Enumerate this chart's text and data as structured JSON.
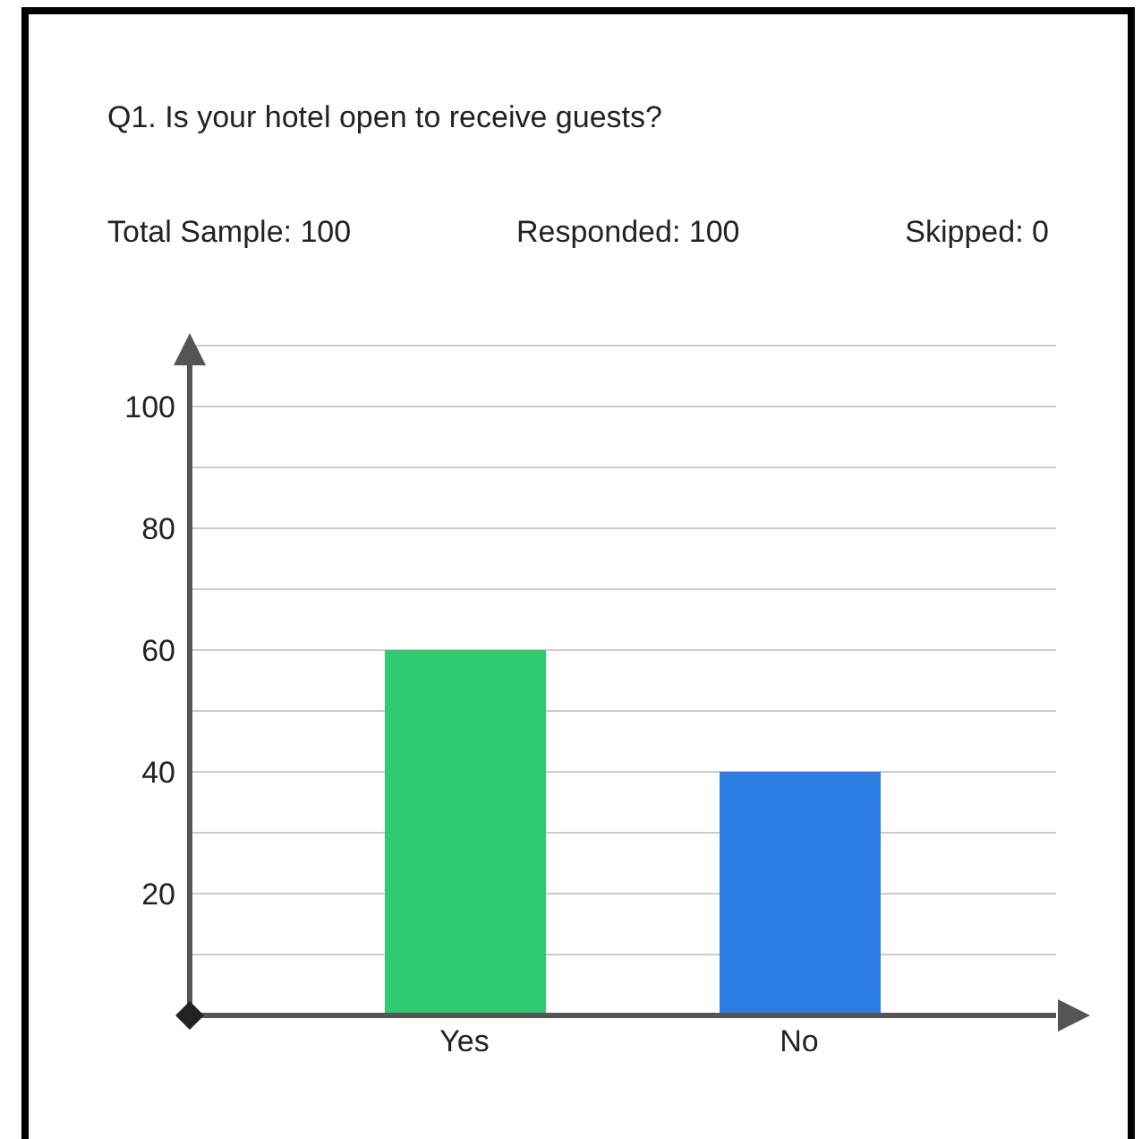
{
  "chart_data": {
    "type": "bar",
    "title": "Q1. Is your hotel open to receive guests?",
    "annotations": [
      "Total Sample: 100",
      "Responded: 100",
      "Skipped: 0"
    ],
    "categories": [
      "Yes",
      "No"
    ],
    "values": [
      60,
      40
    ],
    "colors": [
      "#2ecc71",
      "#2a7de0"
    ],
    "ylim": [
      0,
      110
    ],
    "yticks": [
      {
        "value": 10,
        "label": null
      },
      20,
      {
        "value": 30,
        "label": null
      },
      40,
      {
        "value": 50,
        "label": null
      },
      60,
      {
        "value": 70,
        "label": null
      },
      80,
      {
        "value": 90,
        "label": null
      },
      100
    ],
    "grid": "y"
  }
}
